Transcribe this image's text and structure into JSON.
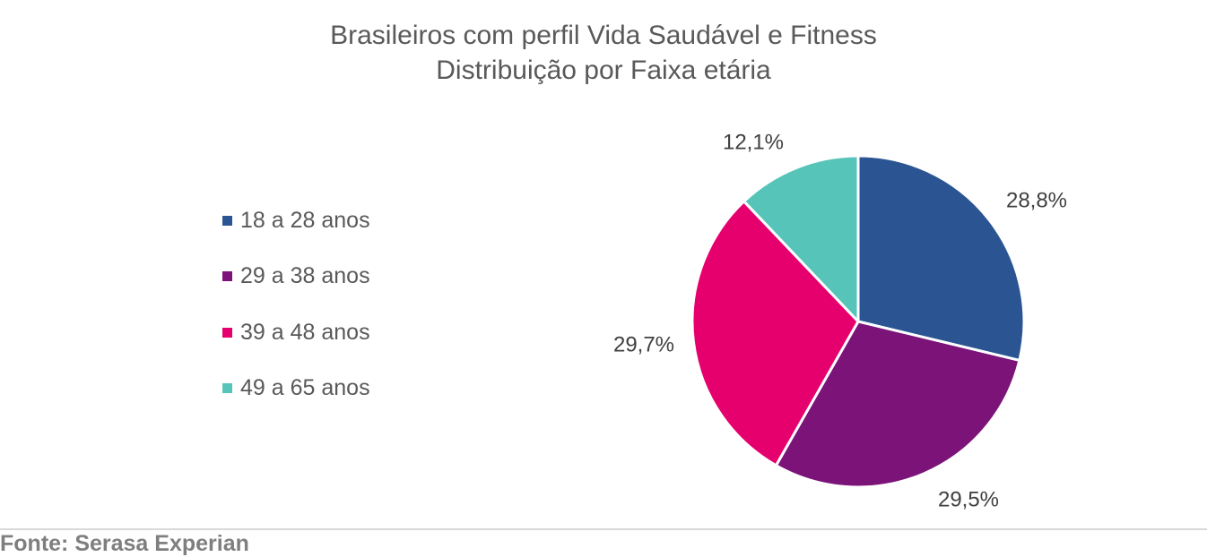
{
  "chart_data": {
    "type": "pie",
    "title": "Brasileiros com perfil Vida Saudável e Fitness",
    "subtitle": "Distribuição por Faixa etária",
    "categories": [
      "18 a 28 anos",
      "29 a 38 anos",
      "39 a 48 anos",
      "49 a 65 anos"
    ],
    "values": [
      28.8,
      29.5,
      29.7,
      12.1
    ],
    "data_labels": [
      "28,8%",
      "29,5%",
      "29,7%",
      "12,1%"
    ],
    "colors": [
      "#2b5592",
      "#7b1378",
      "#e6006e",
      "#57c4b9"
    ],
    "legend_position": "left"
  },
  "source": "Fonte: Serasa Experian"
}
